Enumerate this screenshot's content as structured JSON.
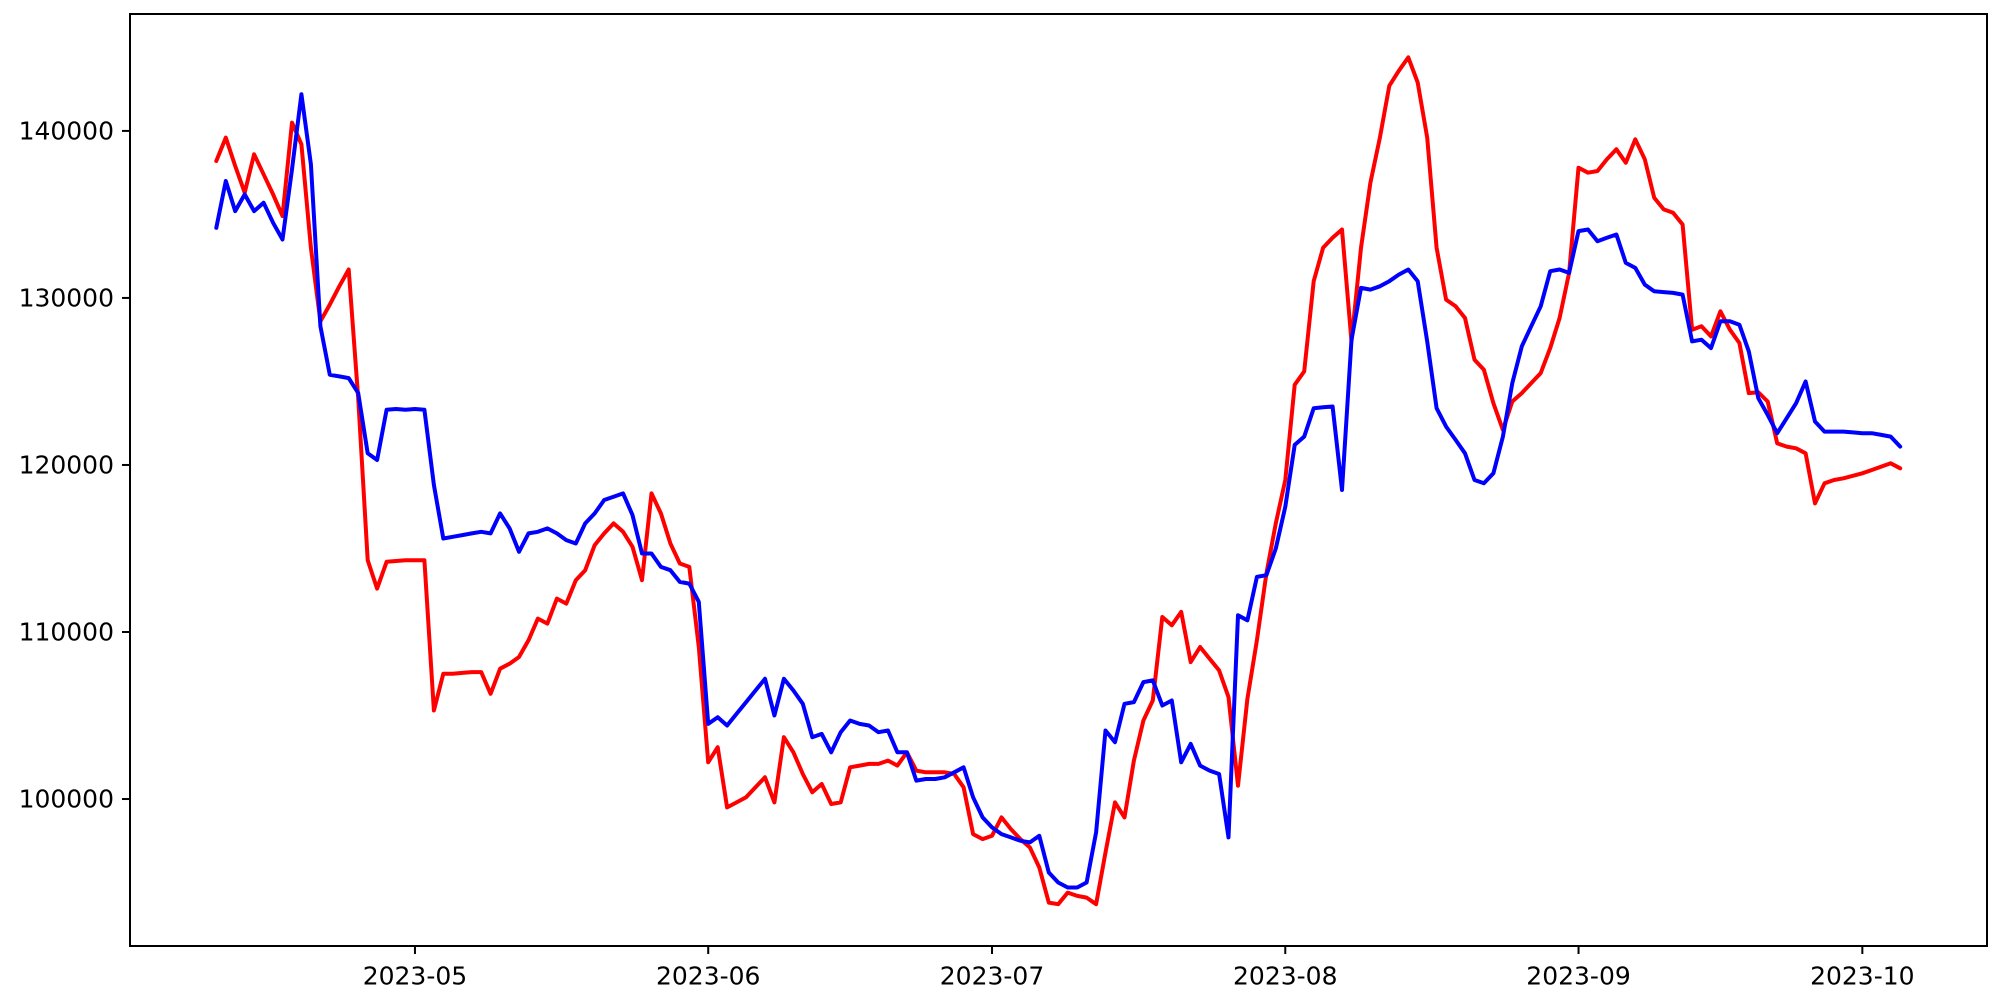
{
  "figure": {
    "background_color": "#ffffff",
    "axes_edge_color": "#000000",
    "title": "",
    "legend": null
  },
  "chart_data": {
    "type": "line",
    "title": "",
    "xlabel": "",
    "ylabel": "",
    "grid": false,
    "legend_position": "none",
    "x_unit": "date",
    "start_date": "2023-04-10",
    "frequency": "daily",
    "x_tick_labels": [
      "2023-05",
      "2023-06",
      "2023-07",
      "2023-08",
      "2023-09",
      "2023-10"
    ],
    "x_tick_day_index": [
      21,
      52,
      82,
      113,
      144,
      174
    ],
    "y_tick_values": [
      100000,
      110000,
      120000,
      130000,
      140000
    ],
    "y_tick_labels": [
      "100000",
      "110000",
      "120000",
      "130000",
      "140000"
    ],
    "ylim": [
      91200,
      147000
    ],
    "series": [
      {
        "name": "red-series",
        "color": "#ff0000",
        "values": [
          138200,
          139600,
          137900,
          136300,
          138600,
          137400,
          136200,
          134900,
          140500,
          139200,
          133000,
          128600,
          129600,
          130700,
          131700,
          124000,
          114300,
          112600,
          114200,
          114250,
          114300,
          114300,
          114300,
          105300,
          107500,
          107500,
          107550,
          107600,
          107600,
          106300,
          107800,
          108100,
          108500,
          109500,
          110800,
          110500,
          112000,
          111700,
          113100,
          113700,
          115200,
          115900,
          116500,
          116000,
          115100,
          113100,
          118300,
          117100,
          115300,
          114100,
          113900,
          109100,
          102200,
          103100,
          99500,
          99800,
          100100,
          100700,
          101300,
          99800,
          103700,
          102800,
          101500,
          100400,
          100900,
          99700,
          99800,
          101900,
          102000,
          102100,
          102100,
          102300,
          102000,
          102800,
          101700,
          101600,
          101600,
          101600,
          101500,
          100700,
          97900,
          97600,
          97800,
          98900,
          98200,
          97600,
          97100,
          95900,
          93800,
          93700,
          94400,
          94200,
          94100,
          93700,
          96800,
          99800,
          98900,
          102300,
          104700,
          105900,
          110900,
          110400,
          111200,
          108200,
          109100,
          108400,
          107700,
          106100,
          100800,
          106000,
          109500,
          113500,
          116500,
          119100,
          124800,
          125600,
          131000,
          133000,
          133600,
          134100,
          127400,
          133000,
          136900,
          139600,
          142700,
          143600,
          144400,
          142900,
          139600,
          133000,
          129900,
          129500,
          128800,
          126300,
          125700,
          123700,
          122100,
          123800,
          124300,
          124900,
          125500,
          127000,
          128800,
          131500,
          137800,
          137500,
          137600,
          138300,
          138900,
          138100,
          139500,
          138300,
          136000,
          135300,
          135100,
          134400,
          128100,
          128300,
          127700,
          129200,
          128100,
          127300,
          124300,
          124350,
          123800,
          121300,
          121100,
          121000,
          120700,
          117700,
          118900,
          119100,
          119200,
          119350,
          119500,
          119700,
          119900,
          120100,
          119800
        ]
      },
      {
        "name": "blue-series",
        "color": "#0000ff",
        "values": [
          134200,
          137000,
          135200,
          136200,
          135200,
          135700,
          134500,
          133500,
          137700,
          142200,
          138000,
          128300,
          125400,
          125300,
          125200,
          124300,
          120700,
          120300,
          123300,
          123350,
          123300,
          123350,
          123300,
          118800,
          115600,
          115700,
          115800,
          115900,
          116000,
          115900,
          117100,
          116200,
          114800,
          115900,
          116000,
          116200,
          115900,
          115500,
          115300,
          116500,
          117100,
          117900,
          118100,
          118300,
          117000,
          114700,
          114700,
          113900,
          113700,
          113000,
          112900,
          111800,
          104500,
          104900,
          104400,
          105100,
          105800,
          106500,
          107200,
          105000,
          107200,
          106500,
          105700,
          103700,
          103900,
          102800,
          104000,
          104700,
          104500,
          104400,
          104000,
          104100,
          102800,
          102800,
          101100,
          101200,
          101200,
          101300,
          101600,
          101900,
          100100,
          98900,
          98300,
          97900,
          97700,
          97500,
          97400,
          97800,
          95600,
          95000,
          94700,
          94700,
          95000,
          98000,
          104100,
          103400,
          105700,
          105800,
          107000,
          107100,
          105600,
          105900,
          102200,
          103300,
          102000,
          101700,
          101500,
          97700,
          111000,
          110700,
          113300,
          113400,
          115000,
          117500,
          121200,
          121700,
          123400,
          123450,
          123500,
          118500,
          127500,
          130600,
          130500,
          130700,
          131000,
          131400,
          131700,
          131000,
          127400,
          123400,
          122300,
          121500,
          120700,
          119100,
          118900,
          119500,
          121700,
          124900,
          127100,
          128300,
          129500,
          131600,
          131700,
          131500,
          134000,
          134100,
          133400,
          133600,
          133800,
          132100,
          131800,
          130800,
          130400,
          130350,
          130300,
          130200,
          127400,
          127500,
          127000,
          128600,
          128600,
          128400,
          126800,
          124000,
          123000,
          121900,
          122800,
          123700,
          125000,
          122600,
          122000,
          122000,
          122000,
          121950,
          121900,
          121900,
          121800,
          121700,
          121100
        ]
      }
    ]
  }
}
